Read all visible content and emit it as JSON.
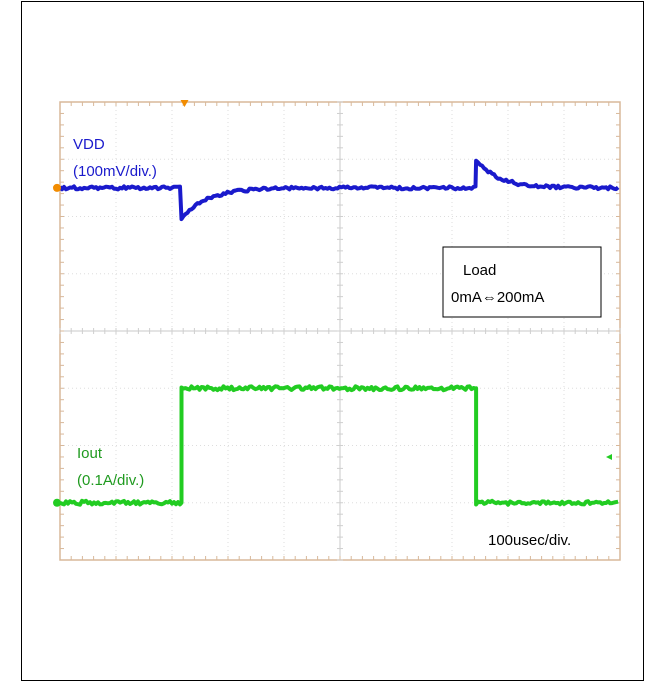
{
  "chart_data": {
    "type": "line",
    "x_divisions": 10,
    "y_divisions": 8,
    "grid": "dotted",
    "timebase_label": "100usec/div.",
    "annotation": {
      "lines": [
        "Load",
        "0mA⇔200mA"
      ],
      "placement": "right"
    },
    "series": [
      {
        "name": "VDD",
        "label_lines": [
          "VDD",
          "(100mV/div.)"
        ],
        "color": "#1a1acc",
        "step_up_at_div": 2.17,
        "step_down_at_div": 7.43,
        "baseline_div": 6.5,
        "undershoot_div": 0.55,
        "overshoot_div": 0.5
      },
      {
        "name": "Iout",
        "label_lines": [
          "Iout",
          "(0.1A/div.)"
        ],
        "color": "#22cc22",
        "low_value_A": 0,
        "high_value_A": 0.2,
        "rise_at_div": 2.17,
        "fall_at_div": 7.43,
        "baseline_div": 1.0
      }
    ],
    "markers": {
      "trigger_color": "#f28c00",
      "ch1_ground_color": "#f28c00",
      "ch2_ground_color": "#22cc22"
    }
  }
}
